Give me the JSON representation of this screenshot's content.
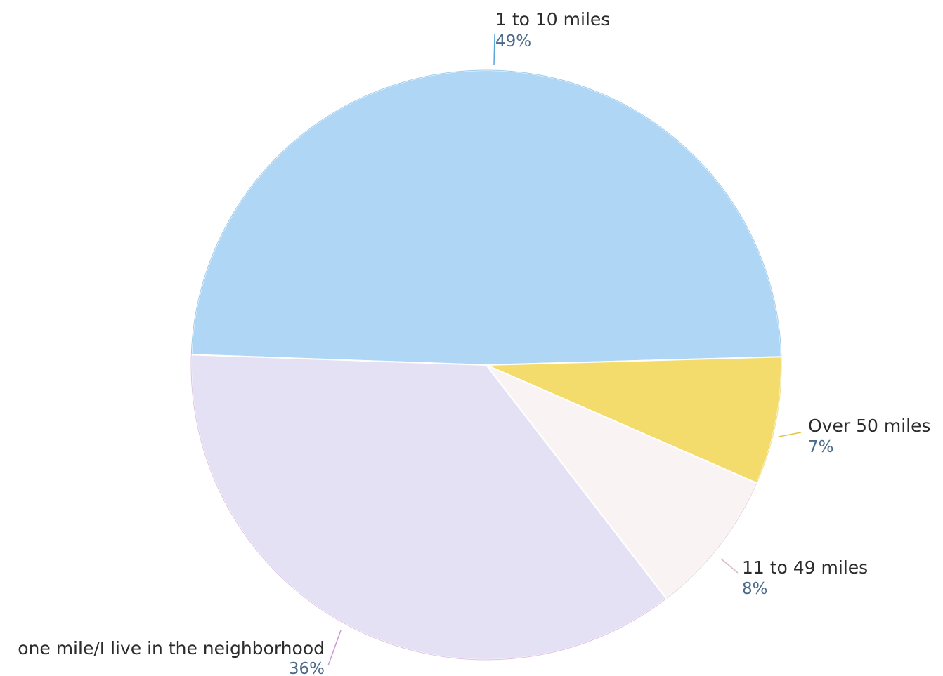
{
  "chart_data": {
    "type": "pie",
    "slices": [
      {
        "label": "1 to 10 miles",
        "value": 49,
        "value_label": "49%",
        "color": "#afd6f4",
        "line_color": "#5aa7dc"
      },
      {
        "label": "Over 50 miles",
        "value": 7,
        "value_label": "7%",
        "color": "#f3dc6b",
        "line_color": "#e2c440"
      },
      {
        "label": "11 to 49 miles",
        "value": 8,
        "value_label": "8%",
        "color": "#faf3f4",
        "line_color": "#d8b8c8"
      },
      {
        "label": "one mile/I live in the neighborhood",
        "value": 36,
        "value_label": "36%",
        "color": "#e3e1f3",
        "line_color": "#c89ad0"
      }
    ]
  }
}
